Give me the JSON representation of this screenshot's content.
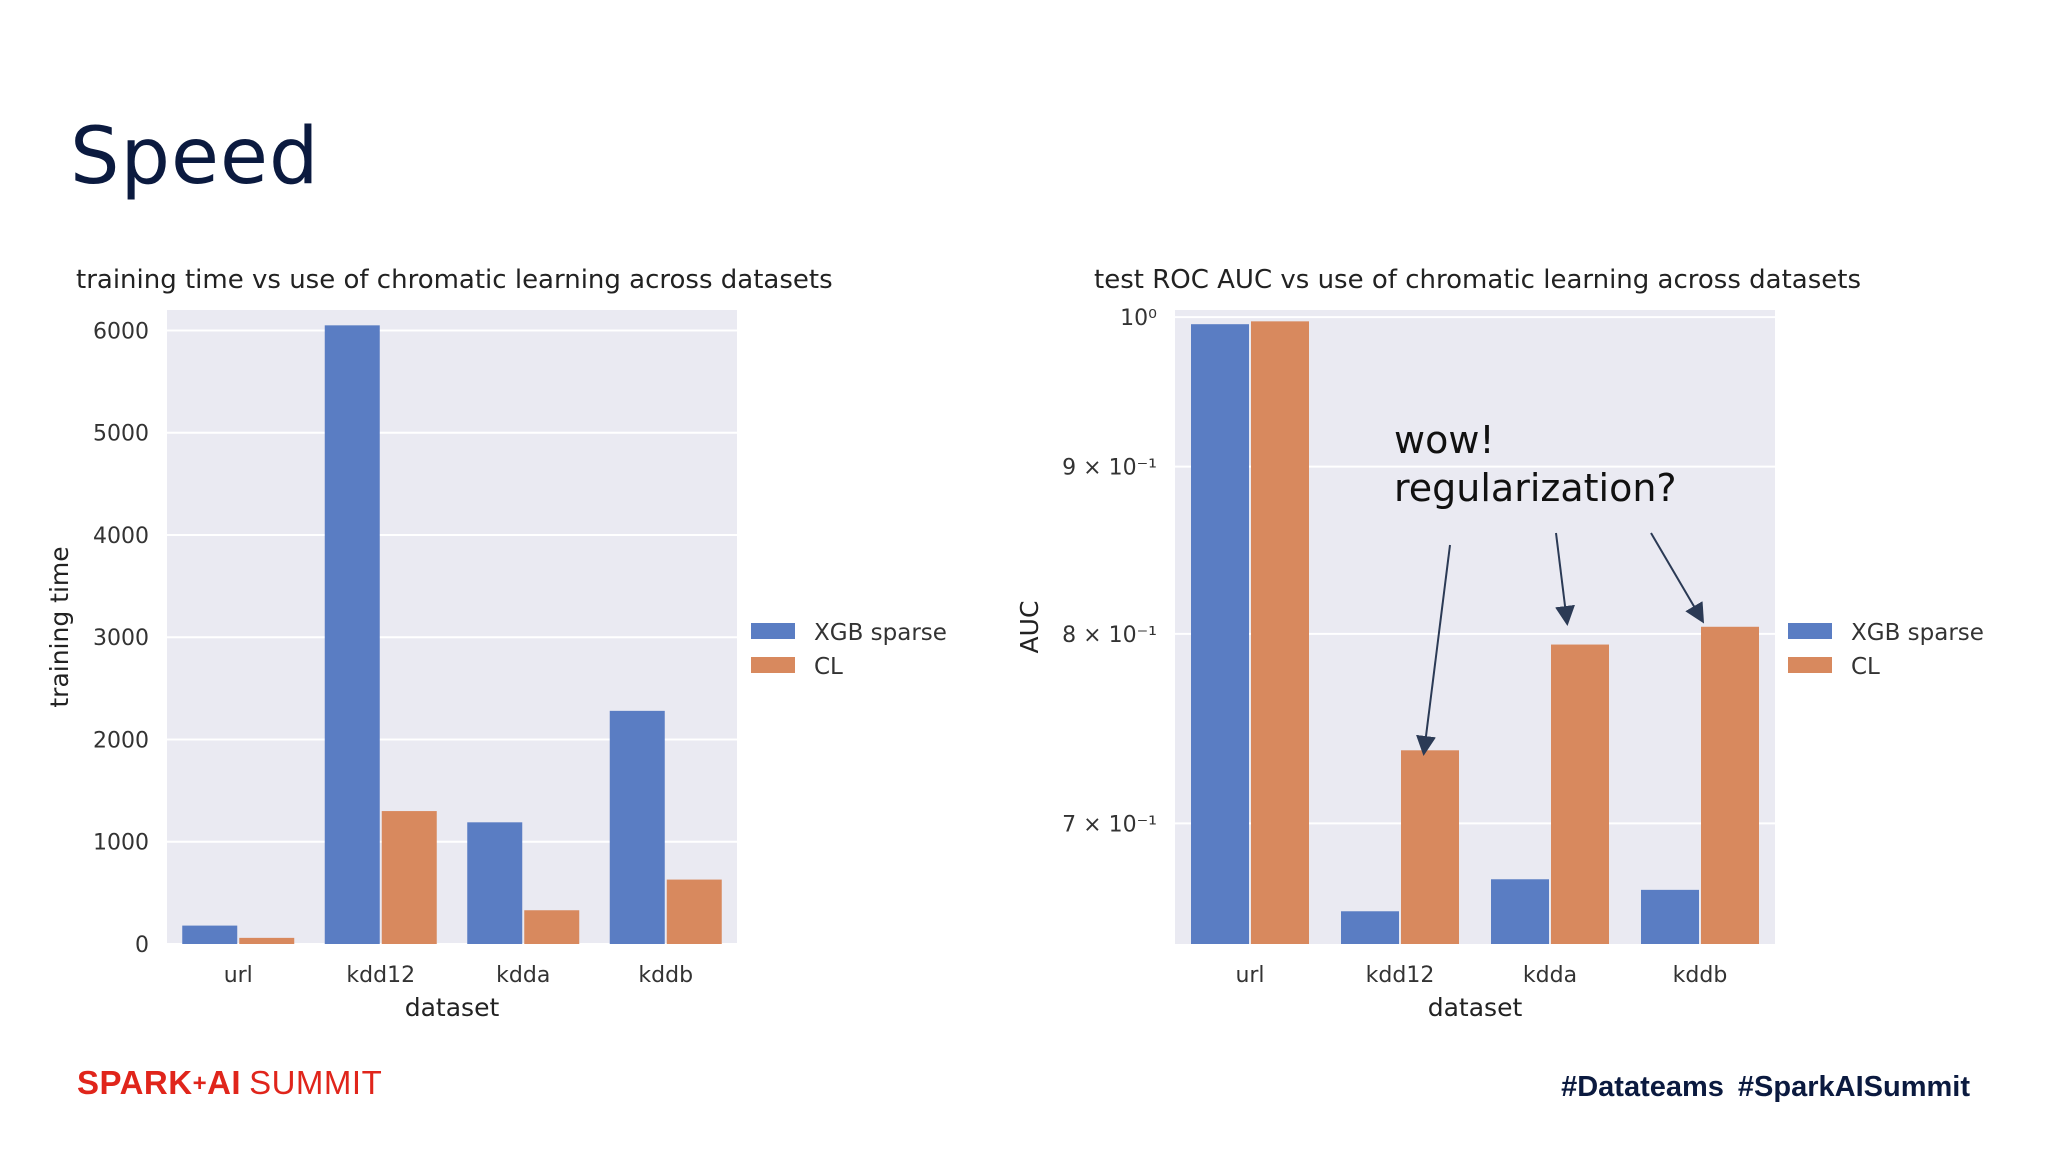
{
  "slide": {
    "title": "Speed"
  },
  "footer": {
    "logo_part1": "SPARK",
    "logo_plus": "+",
    "logo_part2": "AI",
    "logo_part3": "SUMMIT",
    "hashtag1": "#Datateams",
    "hashtag2": "#SparkAISummit"
  },
  "colors": {
    "xgb": "#5a7dc3",
    "cl": "#d8895e",
    "plot_bg": "#eaeaf2",
    "title": "#0b1a3f",
    "brand": "#e0251b"
  },
  "annotation": {
    "line1": "wow!",
    "line2": "regularization?"
  },
  "chart_data": [
    {
      "type": "bar",
      "title": "training time vs use of chromatic learning across datasets",
      "xlabel": "dataset",
      "ylabel": "training time",
      "categories": [
        "url",
        "kdd12",
        "kdda",
        "kddb"
      ],
      "series": [
        {
          "name": "XGB sparse",
          "values": [
            180,
            6050,
            1190,
            2280
          ]
        },
        {
          "name": "CL",
          "values": [
            60,
            1300,
            330,
            630
          ]
        }
      ],
      "ylim": [
        0,
        6200
      ],
      "yticks": [
        0,
        1000,
        2000,
        3000,
        4000,
        5000,
        6000
      ],
      "ytick_labels": [
        "0",
        "1000",
        "2000",
        "3000",
        "4000",
        "5000",
        "6000"
      ],
      "grid": true,
      "legend": "right-outside"
    },
    {
      "type": "bar",
      "title": "test ROC AUC vs use of chromatic learning across datasets",
      "xlabel": "dataset",
      "ylabel": "AUC",
      "yscale": "log",
      "categories": [
        "url",
        "kdd12",
        "kdda",
        "kddb"
      ],
      "series": [
        {
          "name": "XGB sparse",
          "values": [
            0.995,
            0.658,
            0.673,
            0.668
          ]
        },
        {
          "name": "CL",
          "values": [
            0.997,
            0.737,
            0.794,
            0.804
          ]
        }
      ],
      "ylim": [
        0.643,
        1.005
      ],
      "yticks": [
        0.7,
        0.8,
        0.9,
        1.0
      ],
      "ytick_labels": [
        "7 × 10⁻¹",
        "8 × 10⁻¹",
        "9 × 10⁻¹",
        "10⁰"
      ],
      "grid": true,
      "legend": "right-outside"
    }
  ]
}
